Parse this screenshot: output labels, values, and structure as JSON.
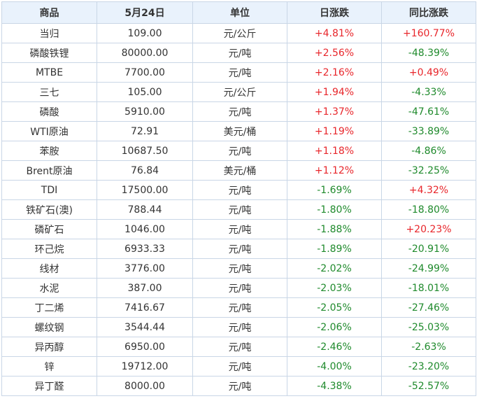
{
  "headers": [
    "商品",
    "5月24日",
    "单位",
    "日涨跌",
    "同比涨跌"
  ],
  "colors": {
    "up": "#e8262b",
    "down": "#1f8a2c",
    "header_bg": "#e9f2fc",
    "border": "#c9d6e6"
  },
  "rows": [
    {
      "name": "当归",
      "price": "109.00",
      "unit": "元/公斤",
      "daily": "+4.81%",
      "yoy": "+160.77%"
    },
    {
      "name": "磷酸铁锂",
      "price": "80000.00",
      "unit": "元/吨",
      "daily": "+2.56%",
      "yoy": "-48.39%"
    },
    {
      "name": "MTBE",
      "price": "7700.00",
      "unit": "元/吨",
      "daily": "+2.16%",
      "yoy": "+0.49%"
    },
    {
      "name": "三七",
      "price": "105.00",
      "unit": "元/公斤",
      "daily": "+1.94%",
      "yoy": "-4.33%"
    },
    {
      "name": "磷酸",
      "price": "5910.00",
      "unit": "元/吨",
      "daily": "+1.37%",
      "yoy": "-47.61%"
    },
    {
      "name": "WTI原油",
      "price": "72.91",
      "unit": "美元/桶",
      "daily": "+1.19%",
      "yoy": "-33.89%"
    },
    {
      "name": "苯胺",
      "price": "10687.50",
      "unit": "元/吨",
      "daily": "+1.18%",
      "yoy": "-4.86%"
    },
    {
      "name": "Brent原油",
      "price": "76.84",
      "unit": "美元/桶",
      "daily": "+1.12%",
      "yoy": "-32.25%"
    },
    {
      "name": "TDI",
      "price": "17500.00",
      "unit": "元/吨",
      "daily": "-1.69%",
      "yoy": "+4.32%"
    },
    {
      "name": "铁矿石(澳)",
      "price": "788.44",
      "unit": "元/吨",
      "daily": "-1.80%",
      "yoy": "-18.80%"
    },
    {
      "name": "磷矿石",
      "price": "1046.00",
      "unit": "元/吨",
      "daily": "-1.88%",
      "yoy": "+20.23%"
    },
    {
      "name": "环己烷",
      "price": "6933.33",
      "unit": "元/吨",
      "daily": "-1.89%",
      "yoy": "-20.91%"
    },
    {
      "name": "线材",
      "price": "3776.00",
      "unit": "元/吨",
      "daily": "-2.02%",
      "yoy": "-24.99%"
    },
    {
      "name": "水泥",
      "price": "387.00",
      "unit": "元/吨",
      "daily": "-2.03%",
      "yoy": "-18.01%"
    },
    {
      "name": "丁二烯",
      "price": "7416.67",
      "unit": "元/吨",
      "daily": "-2.05%",
      "yoy": "-27.46%"
    },
    {
      "name": "螺纹钢",
      "price": "3544.44",
      "unit": "元/吨",
      "daily": "-2.06%",
      "yoy": "-25.03%"
    },
    {
      "name": "异丙醇",
      "price": "6950.00",
      "unit": "元/吨",
      "daily": "-2.46%",
      "yoy": "-2.63%"
    },
    {
      "name": "锌",
      "price": "19712.00",
      "unit": "元/吨",
      "daily": "-4.00%",
      "yoy": "-23.20%"
    },
    {
      "name": "异丁醛",
      "price": "8000.00",
      "unit": "元/吨",
      "daily": "-4.38%",
      "yoy": "-52.57%"
    }
  ]
}
